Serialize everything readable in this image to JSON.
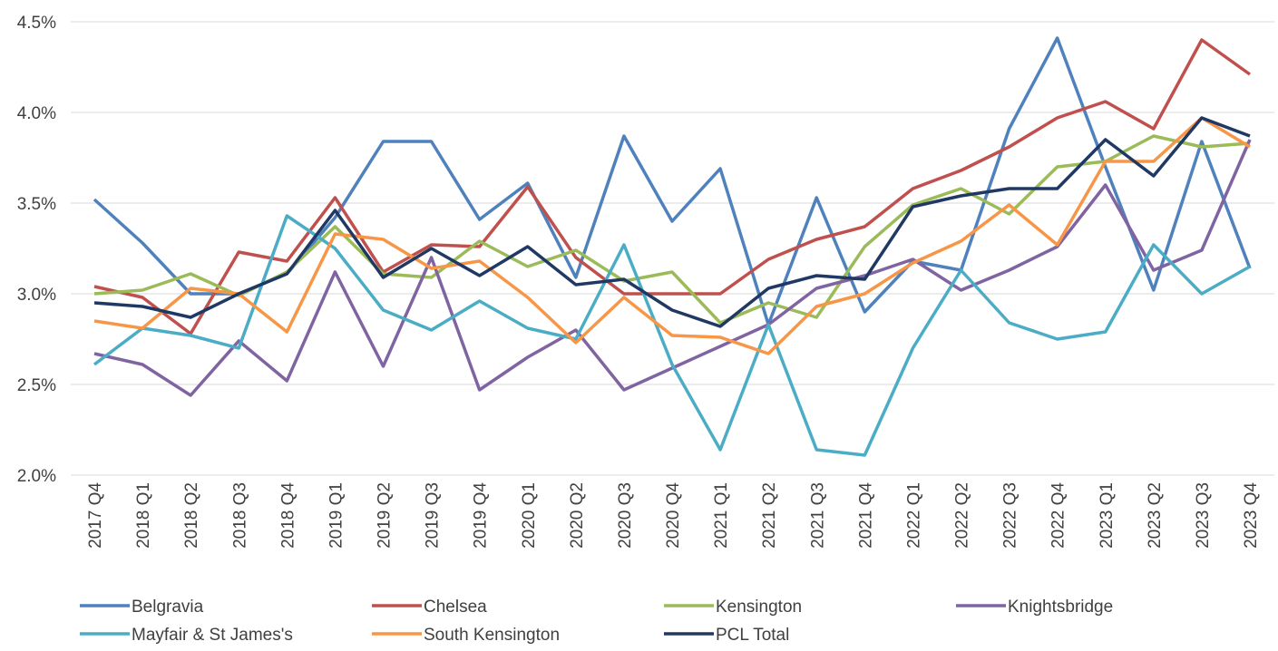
{
  "chart_data": {
    "type": "line",
    "categories": [
      "2017 Q4",
      "2018 Q1",
      "2018 Q2",
      "2018 Q3",
      "2018 Q4",
      "2019 Q1",
      "2019 Q2",
      "2019 Q3",
      "2019 Q4",
      "2020 Q1",
      "2020 Q2",
      "2020 Q3",
      "2020 Q4",
      "2021 Q1",
      "2021 Q2",
      "2021 Q3",
      "2021 Q4",
      "2022 Q1",
      "2022 Q2",
      "2022 Q3",
      "2022 Q4",
      "2023 Q1",
      "2023 Q2",
      "2023 Q3",
      "2023 Q4"
    ],
    "series": [
      {
        "name": "Belgravia",
        "color": "#4f81bd",
        "values": [
          3.52,
          3.28,
          3.0,
          3.0,
          3.11,
          3.42,
          3.84,
          3.84,
          3.41,
          3.61,
          3.09,
          3.87,
          3.4,
          3.69,
          2.83,
          3.53,
          2.9,
          3.18,
          3.13,
          3.91,
          4.41,
          3.7,
          3.02,
          3.84,
          3.14
        ]
      },
      {
        "name": "Chelsea",
        "color": "#c0504d",
        "values": [
          3.04,
          2.98,
          2.78,
          3.23,
          3.18,
          3.53,
          3.12,
          3.27,
          3.26,
          3.59,
          3.2,
          3.0,
          3.0,
          3.0,
          3.19,
          3.3,
          3.37,
          3.58,
          3.68,
          3.81,
          3.97,
          4.06,
          3.91,
          4.4,
          4.21
        ]
      },
      {
        "name": "Kensington",
        "color": "#9bbb59",
        "values": [
          3.0,
          3.02,
          3.11,
          2.99,
          3.12,
          3.37,
          3.11,
          3.09,
          3.29,
          3.15,
          3.24,
          3.07,
          3.12,
          2.84,
          2.95,
          2.87,
          3.26,
          3.49,
          3.58,
          3.44,
          3.7,
          3.73,
          3.87,
          3.81,
          3.83
        ]
      },
      {
        "name": "Knightsbridge",
        "color": "#8064a2",
        "values": [
          2.67,
          2.61,
          2.44,
          2.74,
          2.52,
          3.12,
          2.6,
          3.2,
          2.47,
          2.65,
          2.8,
          2.47,
          2.59,
          2.71,
          2.83,
          3.03,
          3.1,
          3.19,
          3.02,
          3.13,
          3.26,
          3.6,
          3.13,
          3.24,
          3.85
        ]
      },
      {
        "name": "Mayfair & St James's",
        "color": "#4bacc6",
        "values": [
          2.61,
          2.81,
          2.77,
          2.7,
          3.43,
          3.25,
          2.91,
          2.8,
          2.96,
          2.81,
          2.75,
          3.27,
          2.61,
          2.14,
          2.83,
          2.14,
          2.11,
          2.7,
          3.13,
          2.84,
          2.75,
          2.79,
          3.27,
          3.0,
          3.15
        ]
      },
      {
        "name": "South Kensington",
        "color": "#f79646",
        "values": [
          2.85,
          2.81,
          3.03,
          3.0,
          2.79,
          3.33,
          3.3,
          3.14,
          3.18,
          2.98,
          2.73,
          2.98,
          2.77,
          2.76,
          2.67,
          2.93,
          3.0,
          3.17,
          3.29,
          3.49,
          3.27,
          3.73,
          3.73,
          3.97,
          3.81
        ]
      },
      {
        "name": "PCL Total",
        "color": "#1f3864",
        "values": [
          2.95,
          2.93,
          2.87,
          3.0,
          3.11,
          3.46,
          3.09,
          3.25,
          3.1,
          3.26,
          3.05,
          3.08,
          2.91,
          2.82,
          3.03,
          3.1,
          3.08,
          3.48,
          3.54,
          3.58,
          3.58,
          3.85,
          3.65,
          3.97,
          3.87
        ]
      }
    ],
    "ylim": [
      2.0,
      4.5
    ],
    "yticks": [
      {
        "value": 2.0,
        "label": "2.0%"
      },
      {
        "value": 2.5,
        "label": "2.5%"
      },
      {
        "value": 3.0,
        "label": "3.0%"
      },
      {
        "value": 3.5,
        "label": "3.5%"
      },
      {
        "value": 4.0,
        "label": "4.0%"
      },
      {
        "value": 4.5,
        "label": "4.5%"
      }
    ],
    "grid": true
  }
}
